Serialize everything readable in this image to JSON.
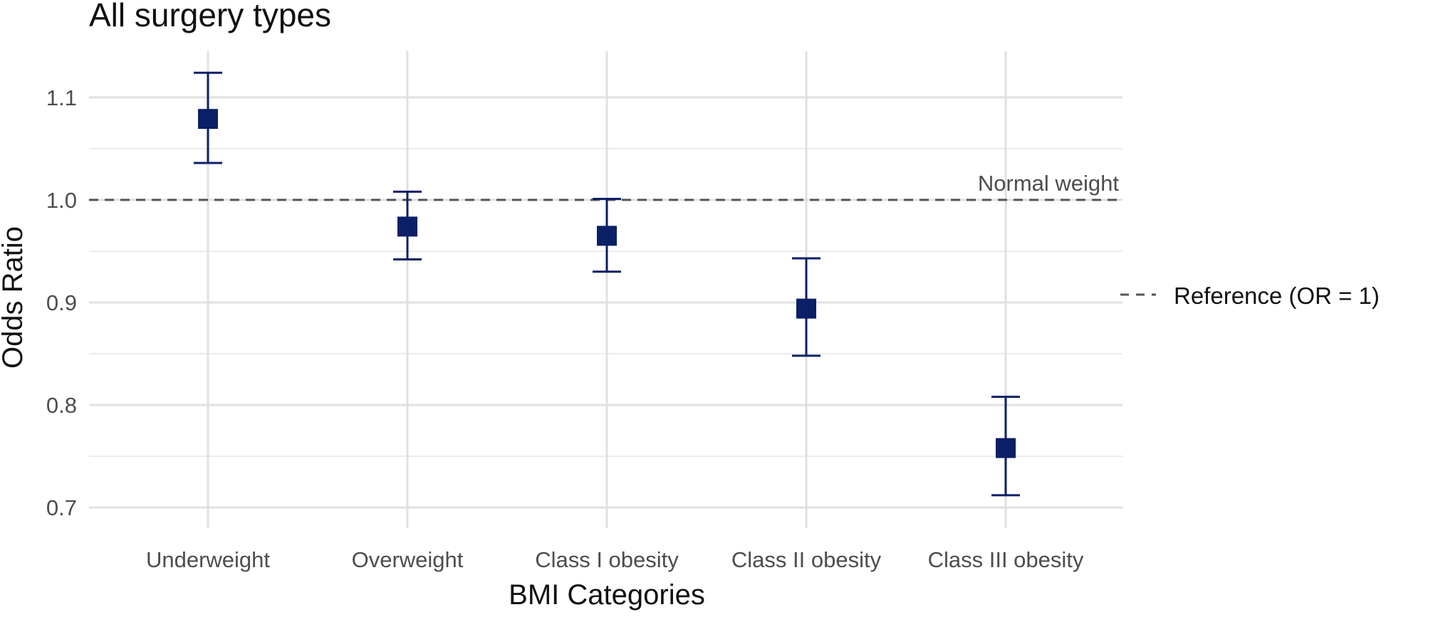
{
  "chart_data": {
    "type": "scatter",
    "title": "All surgery types",
    "xlabel": "BMI Categories",
    "ylabel": "Odds Ratio",
    "categories": [
      "Underweight",
      "Overweight",
      "Class I obesity",
      "Class II obesity",
      "Class III obesity"
    ],
    "series": [
      {
        "values": [
          1.079,
          0.974,
          0.965,
          0.894,
          0.758
        ],
        "lower": [
          1.036,
          0.942,
          0.93,
          0.848,
          0.712
        ],
        "upper": [
          1.124,
          1.008,
          1.001,
          0.943,
          0.808
        ],
        "color": "#0a1f66",
        "marker": "square",
        "error_bars": true
      }
    ],
    "ylim": [
      0.68,
      1.145
    ],
    "yticks": [
      0.7,
      0.8,
      0.9,
      1.0,
      1.1
    ],
    "ytick_labels": [
      "0.7",
      "0.8",
      "0.9",
      "1.0",
      "1.1"
    ],
    "reference_line": {
      "y": 1.0,
      "style": "dashed",
      "color": "#555555",
      "annotation": "Normal weight",
      "legend_label": "Reference (OR = 1)"
    },
    "grid": true,
    "legend_position": "right"
  }
}
